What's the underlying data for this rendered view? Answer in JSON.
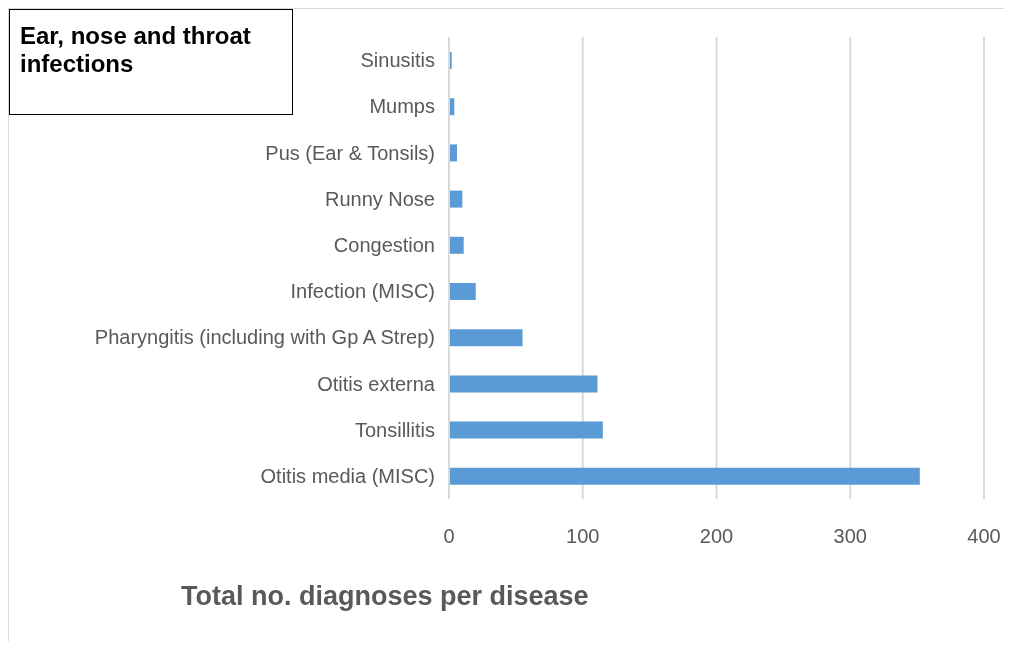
{
  "chart_data": {
    "type": "bar",
    "orientation": "horizontal",
    "title": "Ear, nose and throat infections",
    "xlabel": "Total no. diagnoses per disease",
    "categories": [
      "Sinusitis",
      "Mumps",
      "Pus (Ear & Tonsils)",
      "Runny Nose",
      "Congestion",
      "Infection (MISC)",
      "Pharyngitis (including with Gp A Strep)",
      "Otitis externa",
      "Tonsillitis",
      "Otitis media (MISC)"
    ],
    "values": [
      2,
      4,
      6,
      10,
      11,
      20,
      55,
      111,
      115,
      352
    ],
    "color": "#5b9bd5",
    "xlim": [
      0,
      400
    ],
    "xticks": [
      0,
      100,
      200,
      300,
      400
    ],
    "grid": "x"
  }
}
